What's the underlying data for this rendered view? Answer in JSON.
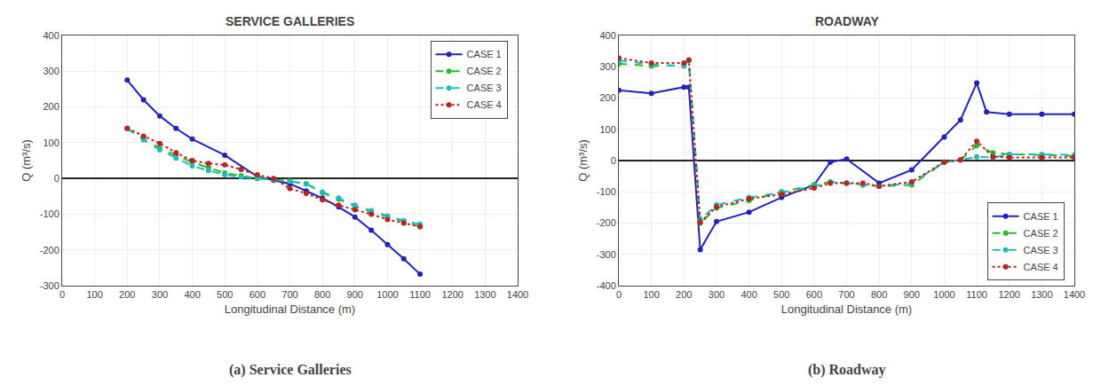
{
  "chart_data": [
    {
      "type": "line",
      "title": "SERVICE GALLERIES",
      "caption": "(a) Service Galleries",
      "xlabel": "Longitudinal Distance (m)",
      "ylabel": "Q (m³/s)",
      "xlim": [
        0,
        1400
      ],
      "ylim": [
        -300,
        400
      ],
      "xticks": [
        0,
        100,
        200,
        300,
        400,
        500,
        600,
        700,
        800,
        900,
        1000,
        1100,
        1200,
        1300,
        1400
      ],
      "yticks": [
        -300,
        -200,
        -100,
        0,
        100,
        200,
        300,
        400
      ],
      "grid": true,
      "legend": "upper right",
      "series": [
        {
          "name": "CASE 1",
          "color": "#2222bb",
          "marker": "circle",
          "line_style": "solid",
          "x": [
            200,
            250,
            300,
            350,
            400,
            500,
            600,
            650,
            700,
            750,
            800,
            850,
            900,
            950,
            1000,
            1050,
            1100
          ],
          "values": [
            275,
            220,
            175,
            140,
            110,
            65,
            5,
            -5,
            -15,
            -35,
            -55,
            -80,
            -108,
            -145,
            -185,
            -225,
            -268
          ]
        },
        {
          "name": "CASE 2",
          "color": "#22bb22",
          "marker": "circle",
          "line_style": "dashed",
          "x": [
            200,
            250,
            300,
            350,
            400,
            450,
            500,
            550,
            600,
            650,
            700,
            750,
            800,
            850,
            900,
            950,
            1000,
            1050,
            1100
          ],
          "values": [
            140,
            110,
            85,
            65,
            45,
            30,
            15,
            8,
            0,
            -3,
            -8,
            -15,
            -40,
            -58,
            -78,
            -93,
            -108,
            -120,
            -135
          ]
        },
        {
          "name": "CASE 3",
          "color": "#22bbbb",
          "marker": "circle",
          "line_style": "dashed",
          "x": [
            200,
            250,
            300,
            350,
            400,
            450,
            500,
            550,
            600,
            650,
            700,
            750,
            800,
            850,
            900,
            950,
            1000,
            1050,
            1100
          ],
          "values": [
            140,
            108,
            80,
            57,
            35,
            22,
            10,
            4,
            0,
            -3,
            -8,
            -15,
            -38,
            -55,
            -75,
            -90,
            -105,
            -118,
            -128
          ]
        },
        {
          "name": "CASE 4",
          "color": "#bb2222",
          "marker": "circle",
          "line_style": "dotted",
          "x": [
            200,
            250,
            300,
            350,
            400,
            450,
            500,
            550,
            600,
            650,
            700,
            750,
            800,
            850,
            900,
            950,
            1000,
            1050,
            1100
          ],
          "values": [
            140,
            118,
            98,
            72,
            50,
            42,
            38,
            25,
            10,
            0,
            -28,
            -42,
            -60,
            -75,
            -88,
            -100,
            -115,
            -125,
            -135
          ]
        }
      ]
    },
    {
      "type": "line",
      "title": "ROADWAY",
      "caption": "(b) Roadway",
      "xlabel": "Longitudinal Distance (m)",
      "ylabel": "Q (m³/s)",
      "xlim": [
        0,
        1400
      ],
      "ylim": [
        -400,
        400
      ],
      "xticks": [
        0,
        100,
        200,
        300,
        400,
        500,
        600,
        700,
        800,
        900,
        1000,
        1100,
        1200,
        1300,
        1400
      ],
      "yticks": [
        -400,
        -300,
        -200,
        -100,
        0,
        100,
        200,
        300,
        400
      ],
      "grid": true,
      "legend": "lower right",
      "series": [
        {
          "name": "CASE 1",
          "color": "#2222bb",
          "marker": "circle",
          "line_style": "solid",
          "x": [
            0,
            100,
            200,
            215,
            250,
            300,
            400,
            500,
            600,
            650,
            700,
            800,
            900,
            1000,
            1050,
            1100,
            1130,
            1200,
            1300,
            1400
          ],
          "values": [
            225,
            215,
            235,
            235,
            -285,
            -195,
            -165,
            -118,
            -78,
            -5,
            5,
            -72,
            -30,
            75,
            130,
            248,
            155,
            148,
            148,
            148
          ]
        },
        {
          "name": "CASE 2",
          "color": "#22bb22",
          "marker": "circle",
          "line_style": "dashed",
          "x": [
            0,
            100,
            200,
            215,
            250,
            300,
            400,
            500,
            600,
            650,
            700,
            750,
            800,
            900,
            1000,
            1050,
            1100,
            1150,
            1200,
            1300,
            1400
          ],
          "values": [
            310,
            302,
            305,
            320,
            -200,
            -152,
            -128,
            -100,
            -78,
            -68,
            -72,
            -78,
            -82,
            -78,
            -5,
            2,
            48,
            25,
            20,
            18,
            15
          ]
        },
        {
          "name": "CASE 3",
          "color": "#22bbbb",
          "marker": "circle",
          "line_style": "dashed",
          "x": [
            0,
            100,
            200,
            215,
            250,
            300,
            400,
            500,
            600,
            650,
            700,
            750,
            800,
            900,
            1000,
            1050,
            1100,
            1150,
            1200,
            1300,
            1400
          ],
          "values": [
            320,
            308,
            302,
            320,
            -188,
            -142,
            -118,
            -102,
            -82,
            -68,
            -72,
            -78,
            -82,
            -72,
            -5,
            2,
            12,
            10,
            20,
            20,
            18
          ]
        },
        {
          "name": "CASE 4",
          "color": "#bb2222",
          "marker": "circle",
          "line_style": "dotted",
          "x": [
            0,
            100,
            200,
            215,
            250,
            300,
            400,
            500,
            600,
            650,
            700,
            750,
            800,
            900,
            1000,
            1050,
            1100,
            1150,
            1200,
            1300,
            1400
          ],
          "values": [
            328,
            312,
            312,
            322,
            -198,
            -148,
            -122,
            -108,
            -88,
            -72,
            -72,
            -72,
            -82,
            -68,
            -5,
            2,
            62,
            12,
            10,
            10,
            10
          ]
        }
      ]
    }
  ]
}
